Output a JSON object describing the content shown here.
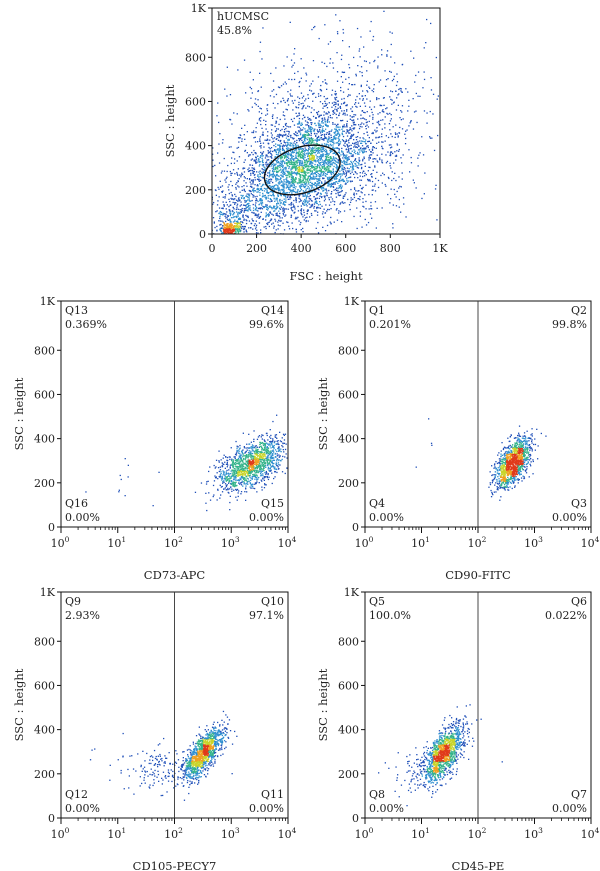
{
  "colors": {
    "frame": "#111111",
    "density": [
      "#1f4fb8",
      "#2e8fd0",
      "#34b38a",
      "#c9d42a",
      "#f0a020",
      "#e03a1a"
    ]
  },
  "chart_data": [
    {
      "id": "gate",
      "type": "scatter",
      "xlabel": "FSC : height",
      "ylabel": "SSC : height",
      "xscale": "linear",
      "xlim": [
        0,
        1023
      ],
      "ylim": [
        0,
        1023
      ],
      "xticks": [
        "0",
        "200",
        "400",
        "600",
        "800",
        "1K"
      ],
      "yticks": [
        "0",
        "200",
        "400",
        "600",
        "800",
        "1K"
      ],
      "gate": {
        "name": "hUCMSC",
        "percent": "45.8%",
        "center": [
          405,
          290
        ],
        "radius": [
          175,
          103
        ],
        "rotation_deg": -18
      },
      "populations": [
        {
          "center": [
            410,
            300
          ],
          "spread": [
            150,
            115
          ],
          "corr": 0.35,
          "n": 2600
        },
        {
          "center": [
            520,
            420
          ],
          "spread": [
            230,
            210
          ],
          "corr": 0.2,
          "n": 1500
        },
        {
          "center": [
            120,
            90
          ],
          "spread": [
            80,
            60
          ],
          "corr": 0.3,
          "n": 350
        },
        {
          "center": [
            85,
            20
          ],
          "spread": [
            25,
            14
          ],
          "corr": 0,
          "n": 220
        }
      ]
    },
    {
      "id": "cd73",
      "type": "scatter",
      "xlabel": "CD73-APC",
      "ylabel": "SSC : height",
      "xscale": "log",
      "xlim": [
        1,
        10000
      ],
      "ylim": [
        0,
        1023
      ],
      "xticks": [
        "10",
        "10",
        "10",
        "10",
        "10"
      ],
      "xtick_exponents": [
        "0",
        "1",
        "2",
        "3",
        "4"
      ],
      "yticks": [
        "0",
        "200",
        "400",
        "600",
        "800",
        "1K"
      ],
      "quadrant_split_x": 100,
      "quadrants": [
        {
          "name": "Q13",
          "percent": "0.369%",
          "pos": "top-left"
        },
        {
          "name": "Q14",
          "percent": "99.6%",
          "pos": "top-right"
        },
        {
          "name": "Q16",
          "percent": "0.00%",
          "pos": "bottom-left"
        },
        {
          "name": "Q15",
          "percent": "0.00%",
          "pos": "bottom-right"
        }
      ],
      "populations": [
        {
          "center": [
            3.35,
            280
          ],
          "spread": [
            0.3,
            60
          ],
          "corr": 0.55,
          "n": 1300
        },
        {
          "center": [
            1.45,
            200
          ],
          "spread": [
            0.4,
            100
          ],
          "corr": 0,
          "n": 12
        }
      ]
    },
    {
      "id": "cd90",
      "type": "scatter",
      "xlabel": "CD90-FITC",
      "ylabel": "SSC : height",
      "xscale": "log",
      "xlim": [
        1,
        10000
      ],
      "ylim": [
        0,
        1023
      ],
      "xticks": [
        "10",
        "10",
        "10",
        "10",
        "10"
      ],
      "xtick_exponents": [
        "0",
        "1",
        "2",
        "3",
        "4"
      ],
      "yticks": [
        "0",
        "200",
        "400",
        "600",
        "800",
        "1K"
      ],
      "quadrant_split_x": 100,
      "quadrants": [
        {
          "name": "Q1",
          "percent": "0.201%",
          "pos": "top-left"
        },
        {
          "name": "Q2",
          "percent": "99.8%",
          "pos": "top-right"
        },
        {
          "name": "Q4",
          "percent": "0.00%",
          "pos": "bottom-left"
        },
        {
          "name": "Q3",
          "percent": "0.00%",
          "pos": "bottom-right"
        }
      ],
      "populations": [
        {
          "center": [
            2.62,
            290
          ],
          "spread": [
            0.16,
            55
          ],
          "corr": 0.6,
          "n": 1200
        },
        {
          "center": [
            0.65,
            330
          ],
          "spread": [
            0.3,
            70
          ],
          "corr": 0,
          "n": 4
        }
      ]
    },
    {
      "id": "cd105",
      "type": "scatter",
      "xlabel": "CD105-PECY7",
      "ylabel": "SSC : height",
      "xscale": "log",
      "xlim": [
        1,
        10000
      ],
      "ylim": [
        0,
        1023
      ],
      "xticks": [
        "10",
        "10",
        "10",
        "10",
        "10"
      ],
      "xtick_exponents": [
        "0",
        "1",
        "2",
        "3",
        "4"
      ],
      "yticks": [
        "0",
        "200",
        "400",
        "600",
        "800",
        "1K"
      ],
      "quadrant_split_x": 100,
      "quadrants": [
        {
          "name": "Q9",
          "percent": "2.93%",
          "pos": "top-left"
        },
        {
          "name": "Q10",
          "percent": "97.1%",
          "pos": "top-right"
        },
        {
          "name": "Q12",
          "percent": "0.00%",
          "pos": "bottom-left"
        },
        {
          "name": "Q11",
          "percent": "0.00%",
          "pos": "bottom-right"
        }
      ],
      "populations": [
        {
          "center": [
            2.5,
            290
          ],
          "spread": [
            0.18,
            60
          ],
          "corr": 0.75,
          "n": 1150
        },
        {
          "center": [
            1.7,
            220
          ],
          "spread": [
            0.35,
            55
          ],
          "corr": 0.3,
          "n": 140
        },
        {
          "center": [
            0.7,
            240
          ],
          "spread": [
            0.5,
            80
          ],
          "corr": 0,
          "n": 8
        }
      ]
    },
    {
      "id": "cd45",
      "type": "scatter",
      "xlabel": "CD45-PE",
      "ylabel": "SSC : height",
      "xscale": "log",
      "xlim": [
        1,
        10000
      ],
      "ylim": [
        0,
        1023
      ],
      "xticks": [
        "10",
        "10",
        "10",
        "10",
        "10"
      ],
      "xtick_exponents": [
        "0",
        "1",
        "2",
        "3",
        "4"
      ],
      "yticks": [
        "0",
        "200",
        "400",
        "600",
        "800",
        "1K"
      ],
      "quadrant_split_x": 100,
      "quadrants": [
        {
          "name": "Q5",
          "percent": "100.0%",
          "pos": "top-left"
        },
        {
          "name": "Q6",
          "percent": "0.022%",
          "pos": "top-right"
        },
        {
          "name": "Q8",
          "percent": "0.00%",
          "pos": "bottom-left"
        },
        {
          "name": "Q7",
          "percent": "0.00%",
          "pos": "bottom-right"
        }
      ],
      "populations": [
        {
          "center": [
            1.38,
            290
          ],
          "spread": [
            0.18,
            65
          ],
          "corr": 0.6,
          "n": 1200
        },
        {
          "center": [
            0.95,
            200
          ],
          "spread": [
            0.3,
            50
          ],
          "corr": 0.2,
          "n": 90
        },
        {
          "center": [
            2.5,
            260
          ],
          "spread": [
            0.05,
            10
          ],
          "corr": 0,
          "n": 1
        }
      ]
    }
  ]
}
